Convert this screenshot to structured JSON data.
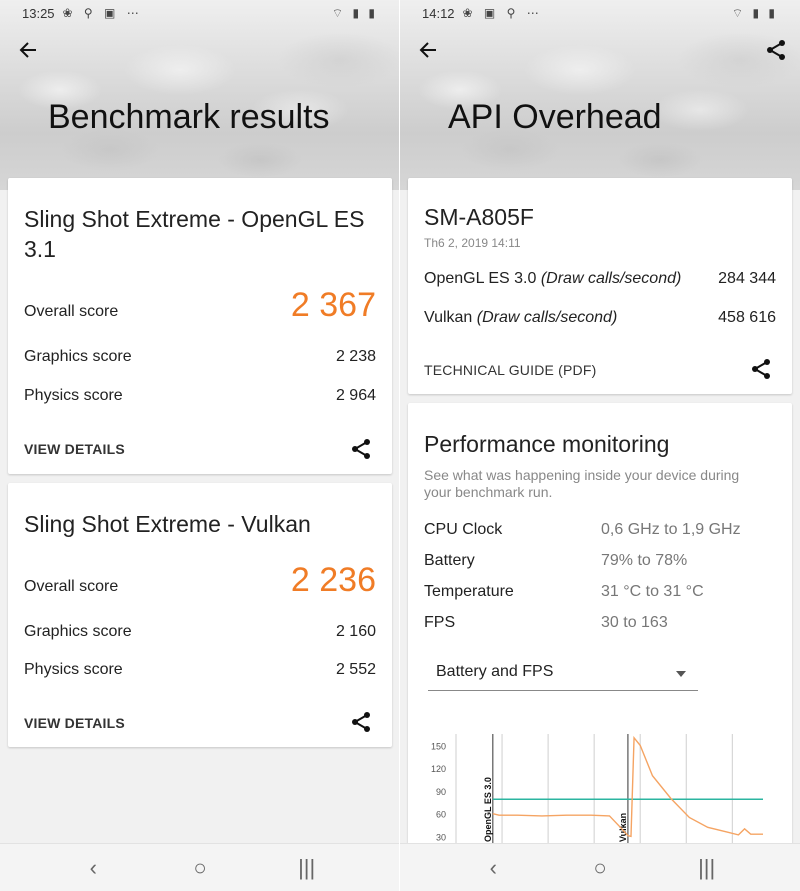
{
  "left": {
    "status": {
      "time": "13:25",
      "icons": "❀ ⚲ ▣ ⋯",
      "right_icons": "⌔ ▮ ▮"
    },
    "title": "Benchmark results",
    "cards": [
      {
        "title": "Sling Shot Extreme - OpenGL ES 3.1",
        "overall_label": "Overall score",
        "overall_value": "2 367",
        "graphics_label": "Graphics score",
        "graphics_value": "2 238",
        "physics_label": "Physics score",
        "physics_value": "2 964",
        "action": "VIEW DETAILS"
      },
      {
        "title": "Sling Shot Extreme - Vulkan",
        "overall_label": "Overall score",
        "overall_value": "2 236",
        "graphics_label": "Graphics score",
        "graphics_value": "2 160",
        "physics_label": "Physics score",
        "physics_value": "2 552",
        "action": "VIEW DETAILS"
      }
    ]
  },
  "right": {
    "status": {
      "time": "14:12",
      "icons": "❀ ▣ ⚲ ⋯",
      "right_icons": "⌔ ▮ ▮"
    },
    "title": "API Overhead",
    "device": {
      "name": "SM-A805F",
      "date": "Th6 2, 2019 14:11",
      "opengl_label": "OpenGL ES 3.0",
      "opengl_unit": "(Draw calls/second)",
      "opengl_value": "284 344",
      "vulkan_label": "Vulkan",
      "vulkan_unit": "(Draw calls/second)",
      "vulkan_value": "458 616",
      "guide": "TECHNICAL GUIDE (PDF)"
    },
    "perf": {
      "title": "Performance monitoring",
      "desc": "See what was happening inside your device during your benchmark run.",
      "rows": [
        {
          "label": "CPU Clock",
          "value": "0,6 GHz to 1,9 GHz"
        },
        {
          "label": "Battery",
          "value": "79% to 78%"
        },
        {
          "label": "Temperature",
          "value": "31 °C to 31 °C"
        },
        {
          "label": "FPS",
          "value": "30 to 163"
        }
      ],
      "dropdown": "Battery and FPS"
    }
  },
  "nav": {
    "back": "‹",
    "home": "○",
    "recents": "|||"
  },
  "colors": {
    "accent": "#f07c26",
    "battery_line": "#2bb5a0",
    "fps_line": "#f5a463"
  },
  "chart_data": {
    "type": "line",
    "yticks": [
      30,
      60,
      90,
      120,
      150
    ],
    "ylim": [
      20,
      165
    ],
    "xlim": [
      0,
      100
    ],
    "markers": [
      {
        "label": "OpenGL ES 3.0",
        "x": 12
      },
      {
        "label": "Vulkan",
        "x": 56
      }
    ],
    "series": [
      {
        "color": "#2bb5a0",
        "x": [
          12,
          100
        ],
        "y": [
          79,
          79
        ]
      },
      {
        "color": "#f5a463",
        "x": [
          12,
          14,
          20,
          28,
          36,
          44,
          50,
          54,
          56,
          57,
          58,
          60,
          64,
          70,
          76,
          82,
          88,
          92,
          94,
          96,
          100
        ],
        "y": [
          60,
          58,
          58,
          57,
          58,
          58,
          57,
          40,
          31,
          30,
          160,
          150,
          110,
          80,
          55,
          42,
          36,
          32,
          40,
          33,
          33
        ]
      }
    ]
  }
}
